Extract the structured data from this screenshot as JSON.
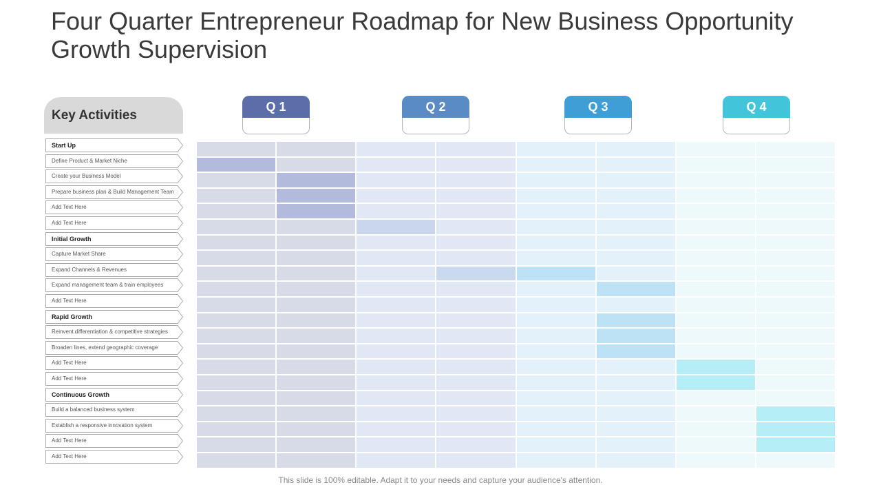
{
  "title": "Four Quarter Entrepreneur Roadmap for New Business Opportunity Growth Supervision",
  "key_activities_label": "Key Activities",
  "quarters": [
    {
      "label": "Q 1",
      "color": "#5b6eaa"
    },
    {
      "label": "Q 2",
      "color": "#5a8bc5"
    },
    {
      "label": "Q 3",
      "color": "#3f9ed6"
    },
    {
      "label": "Q 4",
      "color": "#42c4da"
    }
  ],
  "activities": [
    {
      "label": "Start Up",
      "section": true
    },
    {
      "label": "Define Product  & Market Niche"
    },
    {
      "label": "Create your Business Model"
    },
    {
      "label": "Prepare  business  plan & Build Management  Team"
    },
    {
      "label": "Add Text Here"
    },
    {
      "label": "Add Text Here"
    },
    {
      "label": "Initial Growth",
      "section": true
    },
    {
      "label": "Capture  Market Share"
    },
    {
      "label": "Expand  Channels  & Revenues"
    },
    {
      "label": "Expand  management  team & train employees"
    },
    {
      "label": "Add Text Here"
    },
    {
      "label": "Rapid Growth",
      "section": true
    },
    {
      "label": "Reinvent  differentiation  & competitive  strategies"
    },
    {
      "label": "Broaden  lines, extend geographic  coverage"
    },
    {
      "label": "Add Text Here"
    },
    {
      "label": "Add Text Here"
    },
    {
      "label": "Continuous Growth",
      "section": true
    },
    {
      "label": "Build a balanced  business  system"
    },
    {
      "label": "Establish  a responsive  innovation  system"
    },
    {
      "label": "Add Text Here"
    },
    {
      "label": "Add Text Here"
    }
  ],
  "timeline_bars": [
    {
      "row": 1,
      "start_period": 0,
      "end_period": 1
    },
    {
      "row": 2,
      "start_period": 1,
      "end_period": 2
    },
    {
      "row": 3,
      "start_period": 1,
      "end_period": 2
    },
    {
      "row": 4,
      "start_period": 1,
      "end_period": 2
    },
    {
      "row": 5,
      "start_period": 2,
      "end_period": 3
    },
    {
      "row": 8,
      "start_period": 3,
      "end_period": 5
    },
    {
      "row": 9,
      "start_period": 5,
      "end_period": 6
    },
    {
      "row": 11,
      "start_period": 5,
      "end_period": 6
    },
    {
      "row": 12,
      "start_period": 5,
      "end_period": 6
    },
    {
      "row": 13,
      "start_period": 5,
      "end_period": 6
    },
    {
      "row": 14,
      "start_period": 6,
      "end_period": 7
    },
    {
      "row": 15,
      "start_period": 6,
      "end_period": 7
    },
    {
      "row": 17,
      "start_period": 7,
      "end_period": 8
    },
    {
      "row": 18,
      "start_period": 7,
      "end_period": 8
    },
    {
      "row": 19,
      "start_period": 7,
      "end_period": 8
    }
  ],
  "colors": {
    "base": [
      "#d7dbe8",
      "#d7dbe8",
      "#e1e8f5",
      "#e1e8f5",
      "#e2f1fa",
      "#e2f1fa",
      "#eef9fc",
      "#eef9fc"
    ],
    "bar": [
      "#b2bbdc",
      "#b2bbdc",
      "#c9d6ec",
      "#c9d9ee",
      "#bde2f5",
      "#bde2f5",
      "#b5eef6",
      "#b5eef6"
    ]
  },
  "footer": "This slide is 100% editable. Adapt it to your needs and capture your audience's attention."
}
